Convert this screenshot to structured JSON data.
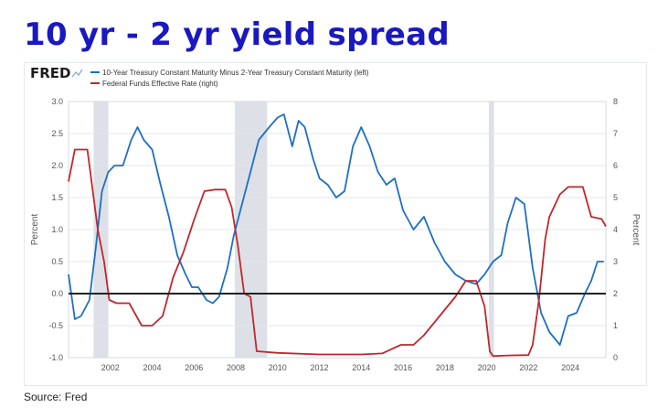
{
  "slide": {
    "title": "10 yr - 2 yr yield spread",
    "source": "Source: Fred"
  },
  "chart_data": {
    "type": "line",
    "brand": "FRED",
    "legend_position": "top-left",
    "grid": true,
    "x_range": [
      2000.0,
      2025.7
    ],
    "x_ticks": [
      "2002",
      "2004",
      "2006",
      "2008",
      "2010",
      "2012",
      "2014",
      "2016",
      "2018",
      "2020",
      "2022",
      "2024"
    ],
    "y_left": {
      "label": "Percent",
      "range": [
        -1.0,
        3.0
      ],
      "ticks": [
        "-1.0",
        "-0.5",
        "0.0",
        "0.5",
        "1.0",
        "1.5",
        "2.0",
        "2.5",
        "3.0"
      ]
    },
    "y_right": {
      "label": "Percent",
      "range": [
        0,
        8
      ],
      "ticks": [
        "0",
        "1",
        "2",
        "3",
        "4",
        "5",
        "6",
        "7",
        "8"
      ]
    },
    "zero_line": 0.0,
    "recessions": [
      [
        2001.2,
        2001.9
      ],
      [
        2007.95,
        2009.5
      ],
      [
        2020.1,
        2020.35
      ]
    ],
    "colors": {
      "spread": "#1f6fc4",
      "fed_funds": "#c0272d",
      "recession": "#dde1e7",
      "zero_line": "#222222",
      "title": "#1a18c0"
    },
    "series": [
      {
        "name": "10-Year Treasury Constant Maturity Minus 2-Year Treasury Constant Maturity (left)",
        "axis": "left",
        "x": [
          2000.0,
          2000.3,
          2000.6,
          2001.0,
          2001.3,
          2001.6,
          2001.9,
          2002.2,
          2002.6,
          2003.0,
          2003.3,
          2003.6,
          2004.0,
          2004.4,
          2004.8,
          2005.2,
          2005.6,
          2005.9,
          2006.2,
          2006.6,
          2006.9,
          2007.2,
          2007.6,
          2007.9,
          2008.3,
          2008.7,
          2009.1,
          2009.6,
          2010.0,
          2010.3,
          2010.7,
          2011.0,
          2011.3,
          2011.7,
          2012.0,
          2012.4,
          2012.8,
          2013.2,
          2013.6,
          2014.0,
          2014.4,
          2014.8,
          2015.2,
          2015.6,
          2016.0,
          2016.5,
          2017.0,
          2017.5,
          2018.0,
          2018.5,
          2019.0,
          2019.5,
          2019.9,
          2020.3,
          2020.7,
          2021.0,
          2021.4,
          2021.8,
          2022.2,
          2022.6,
          2023.0,
          2023.5,
          2023.9,
          2024.3,
          2024.7,
          2025.0,
          2025.3,
          2025.6
        ],
        "y": [
          0.3,
          -0.4,
          -0.35,
          -0.1,
          0.7,
          1.6,
          1.9,
          2.0,
          2.0,
          2.4,
          2.6,
          2.4,
          2.25,
          1.7,
          1.2,
          0.6,
          0.3,
          0.1,
          0.1,
          -0.1,
          -0.15,
          -0.05,
          0.4,
          0.9,
          1.4,
          1.9,
          2.4,
          2.6,
          2.75,
          2.8,
          2.3,
          2.7,
          2.6,
          2.1,
          1.8,
          1.7,
          1.5,
          1.6,
          2.3,
          2.6,
          2.3,
          1.9,
          1.7,
          1.8,
          1.3,
          1.0,
          1.2,
          0.8,
          0.5,
          0.3,
          0.2,
          0.15,
          0.3,
          0.5,
          0.6,
          1.1,
          1.5,
          1.4,
          0.4,
          -0.3,
          -0.6,
          -0.8,
          -0.35,
          -0.3,
          0.0,
          0.2,
          0.5,
          0.5
        ]
      },
      {
        "name": "Federal Funds Effective Rate (right)",
        "axis": "right",
        "x": [
          2000.0,
          2000.3,
          2000.6,
          2000.9,
          2001.1,
          2001.4,
          2001.7,
          2001.95,
          2002.3,
          2002.9,
          2003.5,
          2004.0,
          2004.5,
          2005.0,
          2005.5,
          2006.0,
          2006.5,
          2007.0,
          2007.5,
          2007.8,
          2008.1,
          2008.4,
          2008.7,
          2009.0,
          2010.0,
          2012.0,
          2014.0,
          2015.0,
          2015.9,
          2016.5,
          2017.0,
          2017.5,
          2018.0,
          2018.5,
          2019.0,
          2019.5,
          2019.9,
          2020.15,
          2020.3,
          2021.0,
          2022.0,
          2022.2,
          2022.5,
          2022.8,
          2023.0,
          2023.5,
          2023.9,
          2024.6,
          2025.0,
          2025.5,
          2025.7
        ],
        "y": [
          5.5,
          6.5,
          6.5,
          6.5,
          5.5,
          4.0,
          3.0,
          1.8,
          1.7,
          1.7,
          1.0,
          1.0,
          1.3,
          2.5,
          3.3,
          4.3,
          5.2,
          5.25,
          5.25,
          4.7,
          3.5,
          2.0,
          1.9,
          0.2,
          0.15,
          0.1,
          0.1,
          0.13,
          0.4,
          0.4,
          0.7,
          1.1,
          1.5,
          1.9,
          2.4,
          2.4,
          1.6,
          0.2,
          0.05,
          0.07,
          0.08,
          0.4,
          1.8,
          3.7,
          4.4,
          5.1,
          5.33,
          5.33,
          4.4,
          4.33,
          4.1
        ]
      }
    ]
  }
}
